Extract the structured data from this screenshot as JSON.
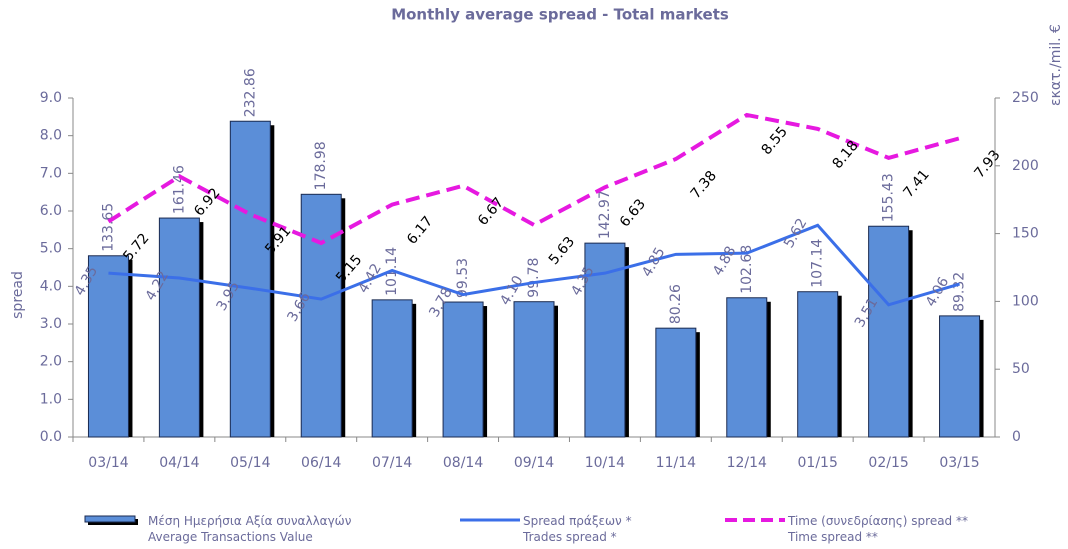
{
  "chart_data": {
    "type": "bar-line",
    "title": "Monthly average spread - Total markets",
    "ylabel": "spread",
    "y2label": "εκατ./mil. €",
    "categories": [
      "03/14",
      "04/14",
      "05/14",
      "06/14",
      "07/14",
      "08/14",
      "09/14",
      "10/14",
      "11/14",
      "12/14",
      "01/15",
      "02/15",
      "03/15"
    ],
    "ylim": [
      0,
      9
    ],
    "yticks": [
      {
        "value": 0,
        "label": "0.0"
      },
      {
        "value": 1,
        "label": "1.0"
      },
      {
        "value": 2,
        "label": "2.0"
      },
      {
        "value": 3,
        "label": "3.0"
      },
      {
        "value": 4,
        "label": "4.0"
      },
      {
        "value": 5,
        "label": "5.0"
      },
      {
        "value": 6,
        "label": "6.0"
      },
      {
        "value": 7,
        "label": "7.0"
      },
      {
        "value": 8,
        "label": "8.0"
      },
      {
        "value": 9,
        "label": "9.0"
      }
    ],
    "y2lim": [
      0,
      250
    ],
    "y2ticks": [
      0,
      50,
      100,
      150,
      200,
      250
    ],
    "series": [
      {
        "name": [
          "Μέση Ημερήσια Αξία συναλλαγών",
          "Average Transactions Value"
        ],
        "kind": "bar",
        "axis": "y2",
        "color": "#5b8ed8",
        "values": [
          133.65,
          161.46,
          232.86,
          178.98,
          101.14,
          99.53,
          99.78,
          142.97,
          80.26,
          102.68,
          107.14,
          155.43,
          89.32
        ]
      },
      {
        "name": [
          "Spread πράξεων *",
          "Trades spread *"
        ],
        "kind": "line",
        "color": "#3b6fe8",
        "values": [
          4.35,
          4.22,
          3.95,
          3.66,
          4.42,
          3.78,
          4.1,
          4.35,
          4.85,
          4.88,
          5.62,
          3.51,
          4.06
        ],
        "value_labels": [
          "4.35",
          "4.22",
          "3.95",
          "3.66",
          "4.42",
          "3.78",
          "4.10",
          "4.35",
          "4.85",
          "4.88",
          "5.62",
          "3.51",
          "4.06"
        ]
      },
      {
        "name": [
          "Time  (συνεδρίασης) spread **",
          "Time spread **"
        ],
        "kind": "dashed-line",
        "color": "#e619e0",
        "values": [
          5.72,
          6.92,
          5.91,
          5.15,
          6.17,
          6.67,
          5.63,
          6.63,
          7.38,
          8.55,
          8.18,
          7.41,
          7.93
        ]
      }
    ]
  }
}
